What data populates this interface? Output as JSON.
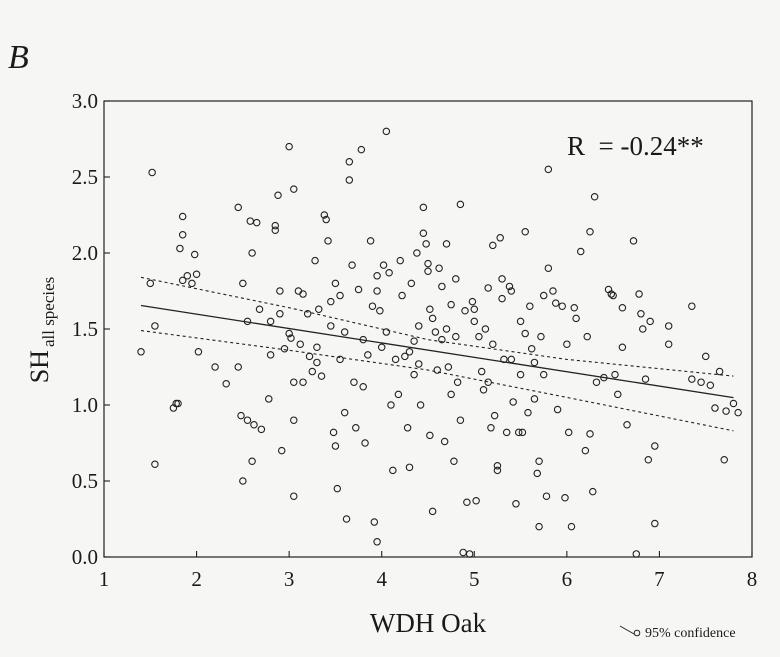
{
  "panel_label": "B",
  "chart_data": {
    "type": "scatter",
    "title": "",
    "xlabel": "WDH Oak",
    "ylabel_main": "SH",
    "ylabel_sub": "all species",
    "xlim": [
      1,
      8
    ],
    "ylim": [
      0.0,
      3.0
    ],
    "x_ticks": [
      1,
      2,
      3,
      4,
      5,
      6,
      7,
      8
    ],
    "y_ticks": [
      0.0,
      0.5,
      1.0,
      1.5,
      2.0,
      2.5,
      3.0
    ],
    "y_tick_labels": [
      "0.0",
      "0.5",
      "1.0",
      "1.5",
      "2.0",
      "2.5",
      "3.0"
    ],
    "grid": false,
    "annotation": "R  = -0.24**",
    "legend": {
      "label": "95% confidence",
      "placement": "bottom-right"
    },
    "regression": {
      "intercept": 1.787,
      "slope": -0.0947,
      "x_range": [
        1.4,
        7.8
      ]
    },
    "confidence_band": {
      "upper": [
        [
          1.4,
          1.84
        ],
        [
          3.0,
          1.64
        ],
        [
          4.5,
          1.43
        ],
        [
          6.0,
          1.3
        ],
        [
          7.8,
          1.19
        ]
      ],
      "lower": [
        [
          1.4,
          1.49
        ],
        [
          3.0,
          1.36
        ],
        [
          4.5,
          1.23
        ],
        [
          6.0,
          1.05
        ],
        [
          7.8,
          0.83
        ]
      ]
    },
    "points": [
      [
        1.4,
        1.35
      ],
      [
        1.5,
        1.8
      ],
      [
        1.52,
        2.53
      ],
      [
        1.55,
        1.52
      ],
      [
        1.55,
        0.61
      ],
      [
        1.75,
        0.98
      ],
      [
        1.78,
        1.01
      ],
      [
        1.8,
        1.01
      ],
      [
        1.85,
        2.24
      ],
      [
        1.85,
        2.12
      ],
      [
        1.82,
        2.03
      ],
      [
        1.85,
        1.82
      ],
      [
        1.9,
        1.85
      ],
      [
        1.95,
        1.8
      ],
      [
        1.98,
        1.99
      ],
      [
        2.0,
        1.86
      ],
      [
        2.02,
        1.35
      ],
      [
        2.2,
        1.25
      ],
      [
        2.32,
        1.14
      ],
      [
        2.45,
        2.3
      ],
      [
        2.45,
        1.25
      ],
      [
        2.5,
        1.8
      ],
      [
        2.48,
        0.93
      ],
      [
        2.5,
        0.5
      ],
      [
        2.55,
        1.55
      ],
      [
        2.55,
        0.9
      ],
      [
        2.58,
        2.21
      ],
      [
        2.6,
        2.0
      ],
      [
        2.6,
        0.63
      ],
      [
        2.62,
        0.87
      ],
      [
        2.65,
        2.2
      ],
      [
        2.68,
        1.63
      ],
      [
        2.7,
        0.84
      ],
      [
        2.78,
        1.04
      ],
      [
        2.8,
        1.55
      ],
      [
        2.8,
        1.33
      ],
      [
        2.85,
        2.18
      ],
      [
        2.85,
        2.15
      ],
      [
        2.88,
        2.38
      ],
      [
        2.9,
        1.75
      ],
      [
        2.9,
        1.6
      ],
      [
        2.92,
        0.7
      ],
      [
        2.95,
        1.37
      ],
      [
        3.0,
        2.7
      ],
      [
        3.0,
        1.47
      ],
      [
        3.02,
        1.44
      ],
      [
        3.05,
        2.42
      ],
      [
        3.05,
        1.15
      ],
      [
        3.05,
        0.9
      ],
      [
        3.05,
        0.4
      ],
      [
        3.1,
        1.75
      ],
      [
        3.12,
        1.4
      ],
      [
        3.15,
        1.73
      ],
      [
        3.15,
        1.15
      ],
      [
        3.2,
        1.6
      ],
      [
        3.22,
        1.32
      ],
      [
        3.25,
        1.22
      ],
      [
        3.28,
        1.95
      ],
      [
        3.3,
        1.38
      ],
      [
        3.3,
        1.28
      ],
      [
        3.32,
        1.63
      ],
      [
        3.35,
        1.19
      ],
      [
        3.38,
        2.25
      ],
      [
        3.4,
        2.22
      ],
      [
        3.42,
        2.08
      ],
      [
        3.45,
        1.68
      ],
      [
        3.45,
        1.52
      ],
      [
        3.48,
        0.82
      ],
      [
        3.5,
        1.8
      ],
      [
        3.5,
        0.73
      ],
      [
        3.52,
        0.45
      ],
      [
        3.55,
        1.72
      ],
      [
        3.55,
        1.3
      ],
      [
        3.6,
        1.48
      ],
      [
        3.6,
        0.95
      ],
      [
        3.62,
        0.25
      ],
      [
        3.65,
        2.6
      ],
      [
        3.65,
        2.48
      ],
      [
        3.68,
        1.92
      ],
      [
        3.7,
        1.15
      ],
      [
        3.72,
        0.85
      ],
      [
        3.75,
        1.76
      ],
      [
        3.78,
        2.68
      ],
      [
        3.8,
        1.43
      ],
      [
        3.8,
        1.12
      ],
      [
        3.82,
        0.75
      ],
      [
        3.85,
        1.33
      ],
      [
        3.88,
        2.08
      ],
      [
        3.9,
        1.65
      ],
      [
        3.92,
        0.23
      ],
      [
        3.95,
        1.85
      ],
      [
        3.95,
        1.75
      ],
      [
        3.95,
        0.1
      ],
      [
        3.98,
        1.62
      ],
      [
        4.0,
        1.38
      ],
      [
        4.02,
        1.92
      ],
      [
        4.05,
        2.8
      ],
      [
        4.05,
        1.48
      ],
      [
        4.08,
        1.87
      ],
      [
        4.1,
        1.0
      ],
      [
        4.12,
        0.57
      ],
      [
        4.15,
        1.3
      ],
      [
        4.18,
        1.07
      ],
      [
        4.2,
        1.95
      ],
      [
        4.22,
        1.72
      ],
      [
        4.25,
        1.32
      ],
      [
        4.28,
        0.85
      ],
      [
        4.3,
        1.35
      ],
      [
        4.3,
        0.59
      ],
      [
        4.32,
        1.8
      ],
      [
        4.35,
        1.42
      ],
      [
        4.35,
        1.2
      ],
      [
        4.38,
        2.0
      ],
      [
        4.4,
        1.52
      ],
      [
        4.4,
        1.27
      ],
      [
        4.42,
        1.0
      ],
      [
        4.45,
        2.3
      ],
      [
        4.45,
        2.13
      ],
      [
        4.48,
        2.06
      ],
      [
        4.5,
        1.93
      ],
      [
        4.5,
        1.88
      ],
      [
        4.52,
        1.63
      ],
      [
        4.52,
        0.8
      ],
      [
        4.55,
        1.57
      ],
      [
        4.55,
        0.3
      ],
      [
        4.58,
        1.48
      ],
      [
        4.6,
        1.23
      ],
      [
        4.62,
        1.9
      ],
      [
        4.65,
        1.78
      ],
      [
        4.65,
        1.43
      ],
      [
        4.68,
        0.76
      ],
      [
        4.7,
        2.06
      ],
      [
        4.7,
        1.5
      ],
      [
        4.72,
        1.25
      ],
      [
        4.75,
        1.66
      ],
      [
        4.75,
        1.07
      ],
      [
        4.78,
        0.63
      ],
      [
        4.8,
        1.83
      ],
      [
        4.8,
        1.45
      ],
      [
        4.82,
        1.15
      ],
      [
        4.85,
        2.32
      ],
      [
        4.85,
        0.9
      ],
      [
        4.88,
        0.03
      ],
      [
        4.9,
        1.62
      ],
      [
        4.92,
        0.36
      ],
      [
        4.95,
        0.02
      ],
      [
        4.98,
        1.68
      ],
      [
        5.0,
        1.63
      ],
      [
        5.0,
        1.55
      ],
      [
        5.02,
        0.37
      ],
      [
        5.05,
        1.45
      ],
      [
        5.08,
        1.22
      ],
      [
        5.1,
        1.1
      ],
      [
        5.12,
        1.5
      ],
      [
        5.15,
        1.77
      ],
      [
        5.15,
        1.15
      ],
      [
        5.18,
        0.85
      ],
      [
        5.2,
        2.05
      ],
      [
        5.2,
        1.4
      ],
      [
        5.22,
        0.93
      ],
      [
        5.25,
        0.6
      ],
      [
        5.25,
        0.57
      ],
      [
        5.28,
        2.1
      ],
      [
        5.3,
        1.83
      ],
      [
        5.3,
        1.7
      ],
      [
        5.32,
        1.3
      ],
      [
        5.35,
        0.82
      ],
      [
        5.38,
        1.78
      ],
      [
        5.4,
        1.75
      ],
      [
        5.4,
        1.3
      ],
      [
        5.42,
        1.02
      ],
      [
        5.45,
        0.35
      ],
      [
        5.48,
        0.82
      ],
      [
        5.5,
        1.55
      ],
      [
        5.5,
        1.2
      ],
      [
        5.52,
        0.82
      ],
      [
        5.55,
        2.14
      ],
      [
        5.55,
        1.47
      ],
      [
        5.58,
        0.95
      ],
      [
        5.6,
        1.65
      ],
      [
        5.62,
        1.37
      ],
      [
        5.65,
        1.28
      ],
      [
        5.65,
        1.04
      ],
      [
        5.68,
        0.55
      ],
      [
        5.7,
        0.63
      ],
      [
        5.7,
        0.2
      ],
      [
        5.72,
        1.45
      ],
      [
        5.75,
        1.72
      ],
      [
        5.75,
        1.2
      ],
      [
        5.78,
        0.4
      ],
      [
        5.8,
        2.55
      ],
      [
        5.8,
        1.9
      ],
      [
        5.85,
        1.75
      ],
      [
        5.88,
        1.67
      ],
      [
        5.9,
        0.97
      ],
      [
        5.95,
        1.65
      ],
      [
        5.98,
        0.39
      ],
      [
        6.0,
        1.4
      ],
      [
        6.02,
        0.82
      ],
      [
        6.05,
        0.2
      ],
      [
        6.08,
        1.64
      ],
      [
        6.1,
        1.57
      ],
      [
        6.15,
        2.01
      ],
      [
        6.2,
        0.7
      ],
      [
        6.22,
        1.45
      ],
      [
        6.25,
        2.14
      ],
      [
        6.25,
        0.81
      ],
      [
        6.28,
        0.43
      ],
      [
        6.3,
        2.37
      ],
      [
        6.32,
        1.15
      ],
      [
        6.4,
        1.18
      ],
      [
        6.45,
        1.76
      ],
      [
        6.48,
        1.73
      ],
      [
        6.5,
        1.72
      ],
      [
        6.52,
        1.2
      ],
      [
        6.55,
        1.07
      ],
      [
        6.6,
        1.64
      ],
      [
        6.6,
        1.38
      ],
      [
        6.65,
        0.87
      ],
      [
        6.72,
        2.08
      ],
      [
        6.78,
        1.73
      ],
      [
        6.8,
        1.6
      ],
      [
        6.82,
        1.5
      ],
      [
        6.85,
        1.17
      ],
      [
        6.88,
        0.64
      ],
      [
        6.9,
        1.55
      ],
      [
        6.95,
        0.73
      ],
      [
        6.95,
        0.22
      ],
      [
        6.75,
        0.02
      ],
      [
        7.1,
        1.52
      ],
      [
        7.1,
        1.4
      ],
      [
        7.35,
        1.65
      ],
      [
        7.35,
        1.17
      ],
      [
        7.45,
        1.15
      ],
      [
        7.5,
        1.32
      ],
      [
        7.55,
        1.13
      ],
      [
        7.6,
        0.98
      ],
      [
        7.65,
        1.22
      ],
      [
        7.7,
        0.64
      ],
      [
        7.72,
        0.96
      ],
      [
        7.8,
        1.01
      ],
      [
        7.85,
        0.95
      ]
    ]
  }
}
